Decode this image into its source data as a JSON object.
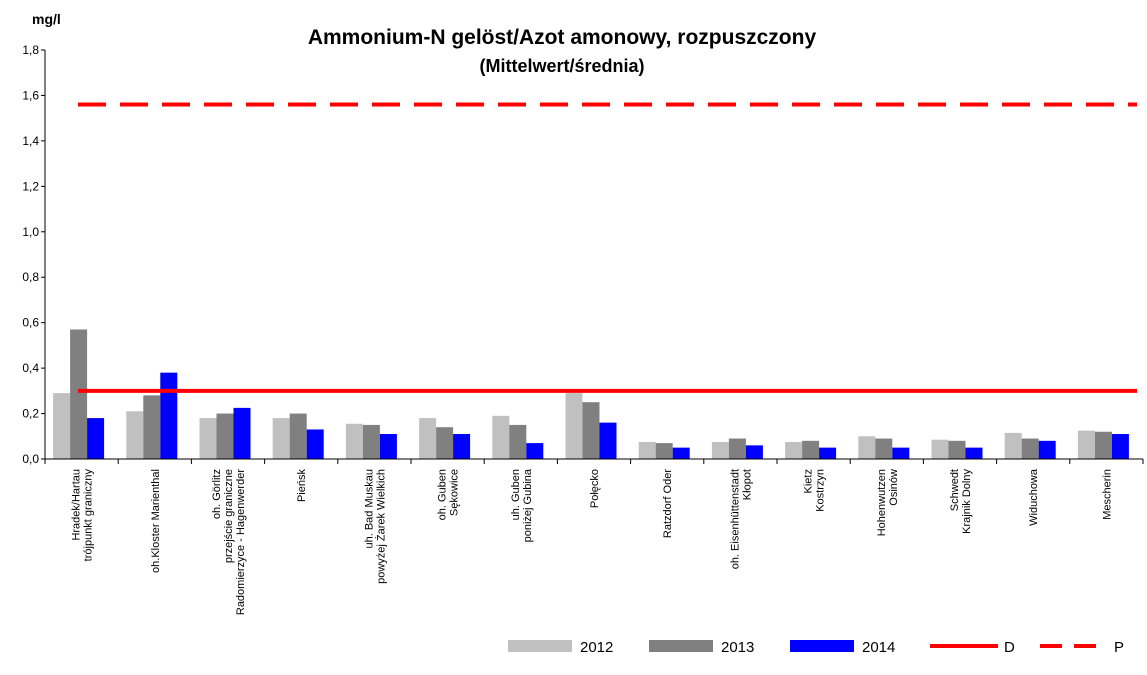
{
  "chart_data": {
    "type": "bar",
    "title": "Ammonium-N gelöst/Azot amonowy, rozpuszczony",
    "subtitle": "(Mittelwert/średnia)",
    "y_label": "mg/l",
    "categories": [
      "Hradek/Hartau\ntrójpunkt graniczny",
      "oh.Kloster Marienthal",
      "oh. Görlitz\nprzejście graniczne\nRadomierzyce - Hagenwerder",
      "Pieńsk",
      "uh. Bad Muskau\npowyżej Żarek Wielkich",
      "oh. Guben\nSękowice",
      "uh. Guben\nponiżej Gubina",
      "Połęcko",
      "Ratzdorf Oder",
      "oh. Eisenhüttenstadt\nKłopot",
      "Kietz\nKostrzyn",
      "Hohenwutzen\nOsinów",
      "Schwedt\nKrajnik Dolny",
      "Widuchowa",
      "Mescherin"
    ],
    "series": [
      {
        "name": "2012",
        "color": "#c0c0c0",
        "values": [
          0.29,
          0.21,
          0.18,
          0.18,
          0.155,
          0.18,
          0.19,
          0.29,
          0.075,
          0.075,
          0.075,
          0.1,
          0.085,
          0.115,
          0.125
        ]
      },
      {
        "name": "2013",
        "color": "#808080",
        "values": [
          0.57,
          0.28,
          0.2,
          0.2,
          0.15,
          0.14,
          0.15,
          0.25,
          0.07,
          0.09,
          0.08,
          0.09,
          0.08,
          0.09,
          0.12
        ]
      },
      {
        "name": "2014",
        "color": "#0000ff",
        "values": [
          0.18,
          0.38,
          0.225,
          0.13,
          0.11,
          0.11,
          0.07,
          0.16,
          0.05,
          0.06,
          0.05,
          0.05,
          0.05,
          0.08,
          0.11
        ]
      }
    ],
    "lines": [
      {
        "name": "D",
        "value": 0.3,
        "color": "#ff0000",
        "style": "solid"
      },
      {
        "name": "P",
        "value": 1.56,
        "color": "#ff0000",
        "style": "dashed"
      }
    ],
    "ylim": [
      0,
      1.8
    ],
    "yticks": [
      {
        "value": 0,
        "label": "0,0"
      },
      {
        "value": 0.2,
        "label": "0,2"
      },
      {
        "value": 0.4,
        "label": "0,4"
      },
      {
        "value": 0.6,
        "label": "0,6"
      },
      {
        "value": 0.8,
        "label": "0,8"
      },
      {
        "value": 1.0,
        "label": "1,0"
      },
      {
        "value": 1.2,
        "label": "1,2"
      },
      {
        "value": 1.4,
        "label": "1,4"
      },
      {
        "value": 1.6,
        "label": "1,6"
      },
      {
        "value": 1.8,
        "label": "1,8"
      }
    ],
    "grid": false
  }
}
